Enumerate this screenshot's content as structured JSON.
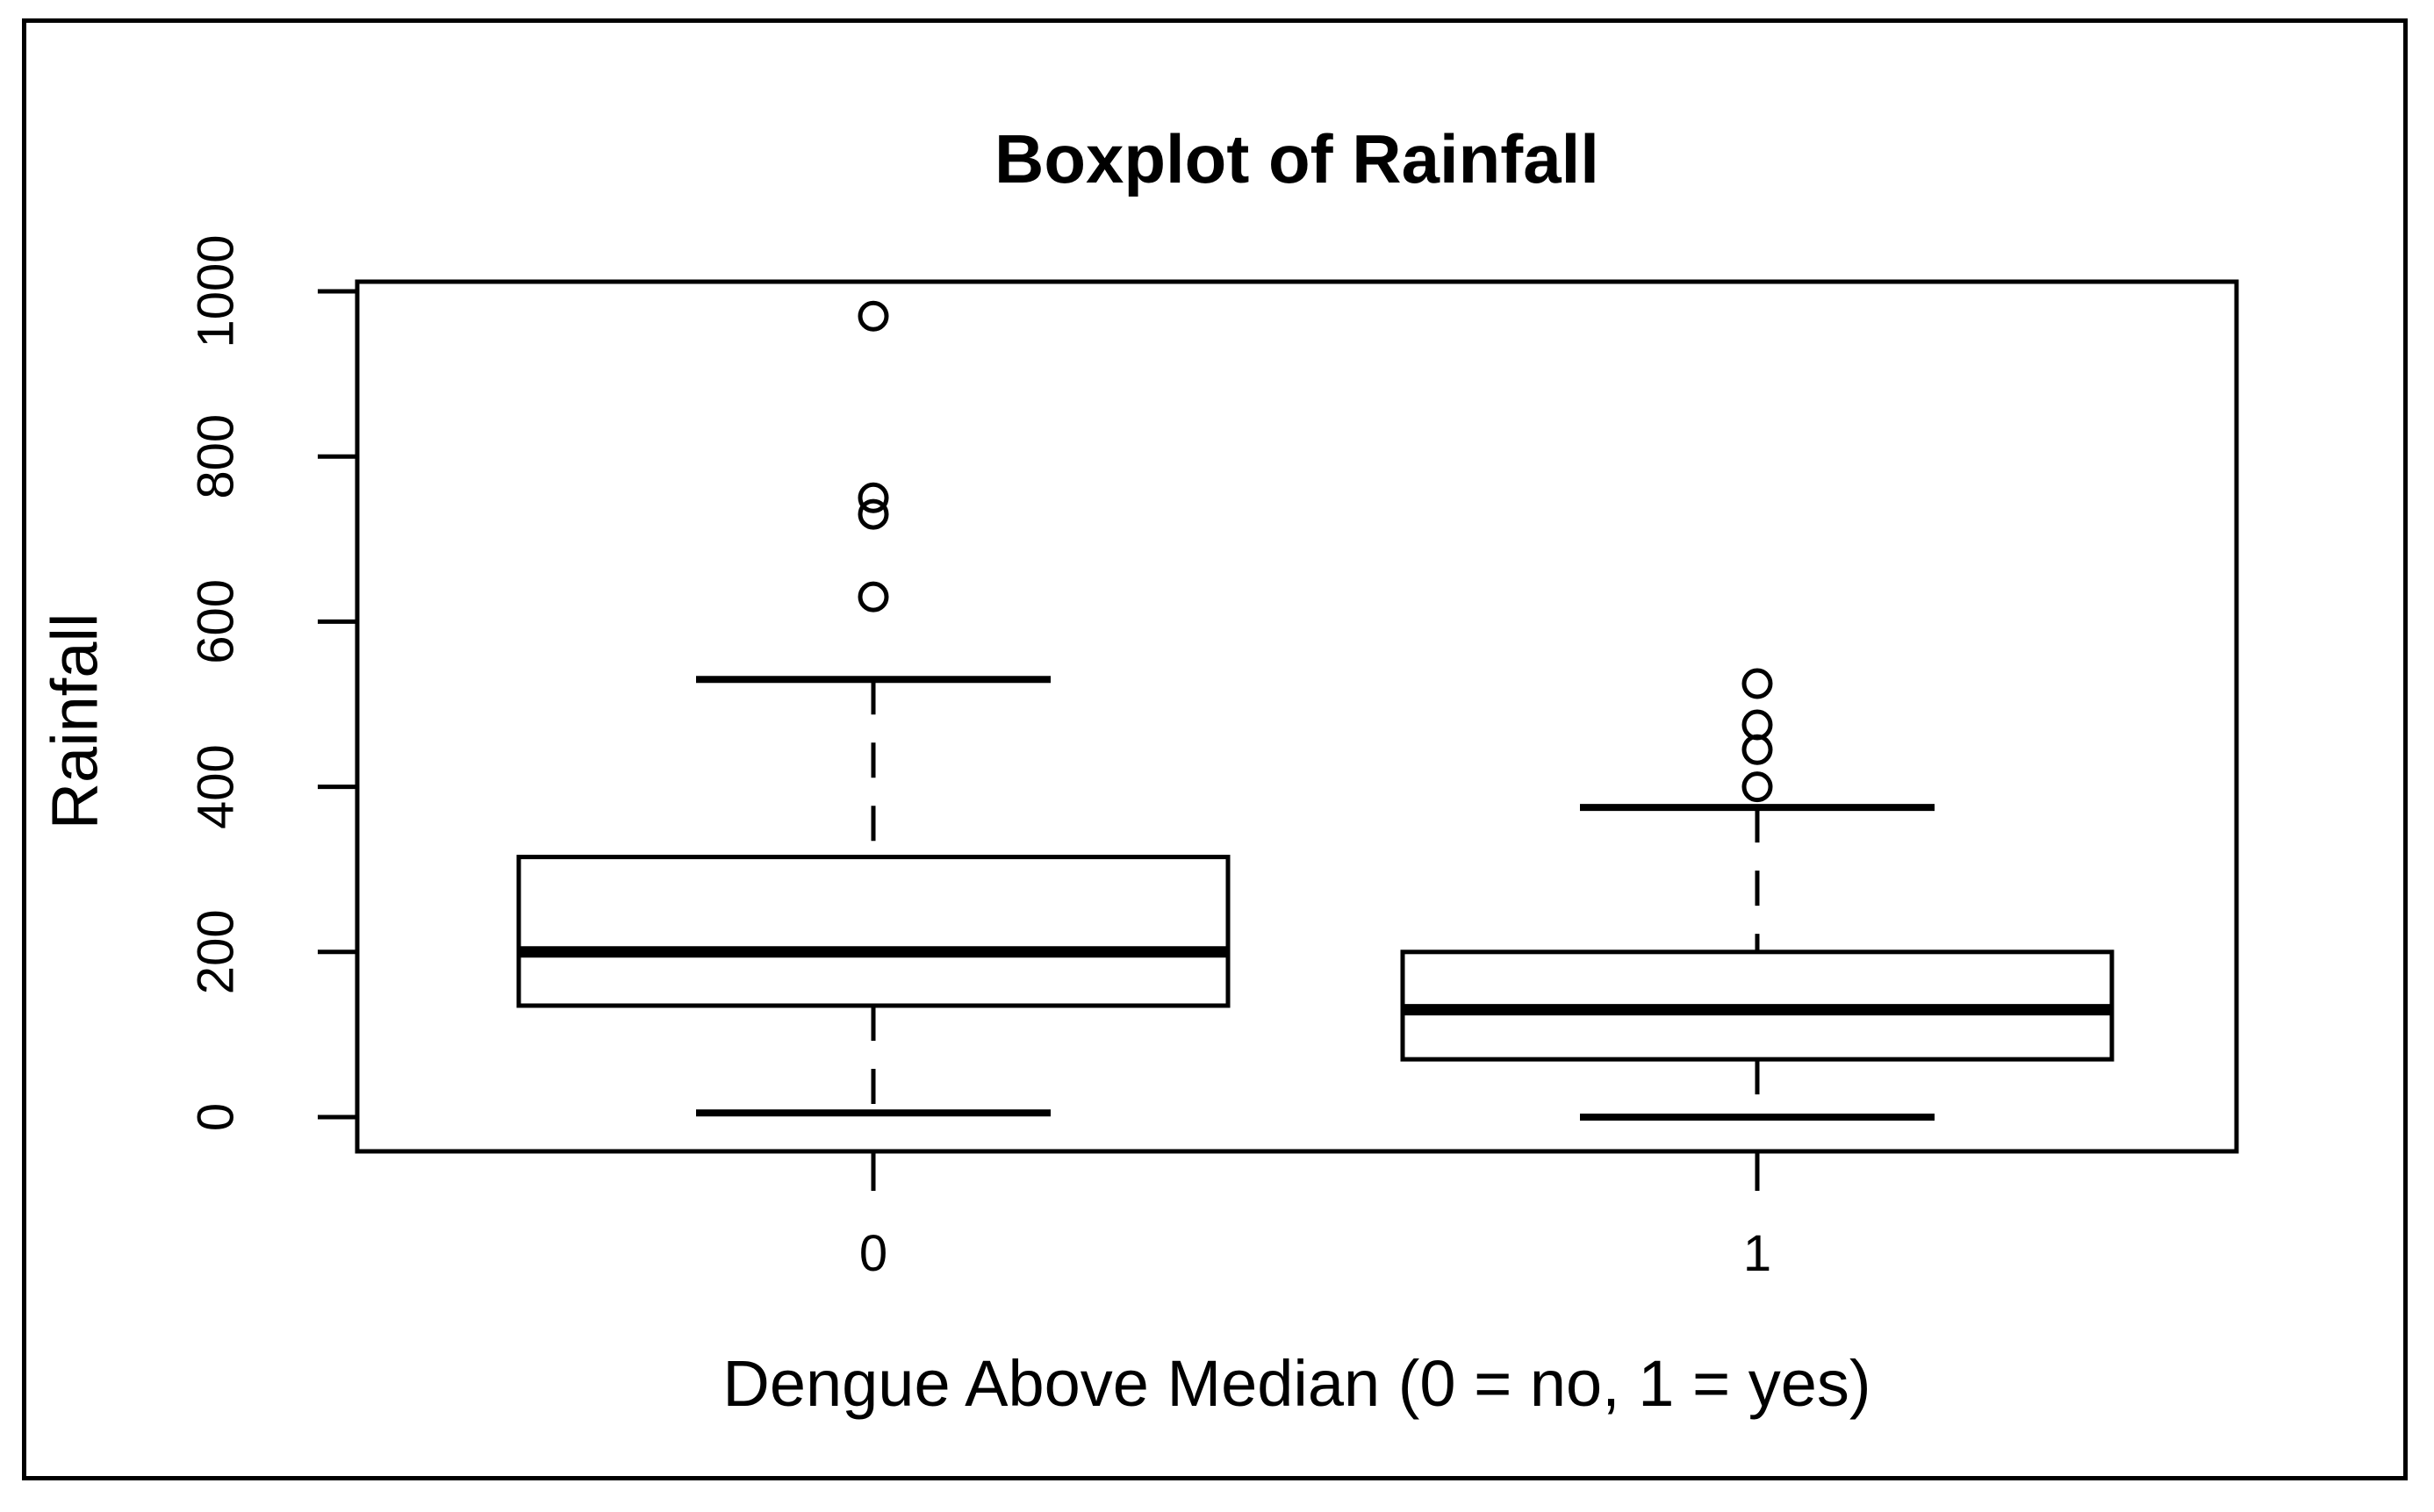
{
  "chart_data": {
    "type": "boxplot",
    "title": "Boxplot of Rainfall",
    "xlabel": "Dengue Above Median (0 = no, 1 = yes)",
    "ylabel": "Rainfall",
    "ylim": [
      0,
      1000
    ],
    "y_ticks": [
      "0",
      "200",
      "400",
      "600",
      "800",
      "1000"
    ],
    "categories": [
      "0",
      "1"
    ],
    "grid": "off",
    "legend": "none",
    "series": [
      {
        "category": "0",
        "whisker_low": 5,
        "q1": 135,
        "median": 200,
        "q3": 315,
        "whisker_high": 530,
        "outliers": [
          630,
          730,
          750,
          970
        ]
      },
      {
        "category": "1",
        "whisker_low": 0,
        "q1": 70,
        "median": 130,
        "q3": 200,
        "whisker_high": 375,
        "outliers": [
          400,
          445,
          475,
          525
        ]
      }
    ],
    "colors": {
      "line": "#000000",
      "background": "#ffffff"
    }
  }
}
